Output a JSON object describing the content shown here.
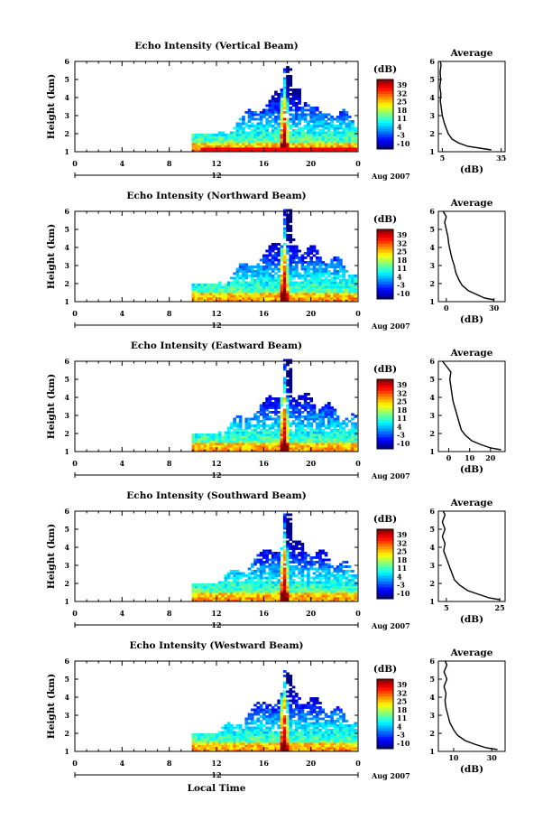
{
  "chart_data": [
    {
      "type": "heatmap",
      "title": "Echo Intensity (Vertical Beam)",
      "ylabel": "Height (km)",
      "ylim": [
        1,
        6
      ],
      "yticks": [
        "1",
        "2",
        "3",
        "4",
        "5",
        "6"
      ],
      "xlim": [
        0,
        24
      ],
      "xticks": [
        "0",
        "4",
        "8",
        "12",
        "16",
        "20",
        "0"
      ],
      "date_label": "12",
      "month_label": "Aug 2007",
      "colorbar": {
        "label": "(dB)",
        "ticks": [
          "39",
          "32",
          "25",
          "18",
          "11",
          "4",
          "-3",
          "-10"
        ]
      },
      "average": {
        "title": "Average",
        "xlabel": "(dB)",
        "xticks": [
          "5",
          "35"
        ],
        "xlim": [
          3,
          37
        ],
        "profile": [
          [
            30,
            1.1
          ],
          [
            24,
            1.2
          ],
          [
            18,
            1.3
          ],
          [
            13,
            1.5
          ],
          [
            10,
            1.7
          ],
          [
            8,
            2.0
          ],
          [
            7,
            2.3
          ],
          [
            6,
            2.6
          ],
          [
            5,
            3.0
          ],
          [
            4.5,
            3.4
          ],
          [
            4,
            3.8
          ],
          [
            4.3,
            4.2
          ],
          [
            3.8,
            4.6
          ],
          [
            4.2,
            5.0
          ],
          [
            3.9,
            5.4
          ],
          [
            4.4,
            5.8
          ],
          [
            4.0,
            6.0
          ]
        ]
      }
    },
    {
      "type": "heatmap",
      "title": "Echo Intensity (Northward Beam)",
      "ylabel": "Height (km)",
      "ylim": [
        1,
        6
      ],
      "yticks": [
        "1",
        "2",
        "3",
        "4",
        "5",
        "6"
      ],
      "xlim": [
        0,
        24
      ],
      "xticks": [
        "0",
        "4",
        "8",
        "12",
        "16",
        "20",
        "0"
      ],
      "date_label": "12",
      "month_label": "Aug 2007",
      "colorbar": {
        "label": "(dB)",
        "ticks": [
          "39",
          "32",
          "25",
          "18",
          "11",
          "4",
          "-3",
          "-10"
        ]
      },
      "average": {
        "title": "Average",
        "xlabel": "(dB)",
        "xticks": [
          "0",
          "30"
        ],
        "xlim": [
          -5,
          37
        ],
        "profile": [
          [
            30,
            1.1
          ],
          [
            24,
            1.2
          ],
          [
            19,
            1.4
          ],
          [
            14,
            1.6
          ],
          [
            10,
            1.9
          ],
          [
            8,
            2.2
          ],
          [
            6,
            2.6
          ],
          [
            5,
            3.0
          ],
          [
            3.5,
            3.4
          ],
          [
            2.5,
            3.8
          ],
          [
            1.5,
            4.2
          ],
          [
            1,
            4.6
          ],
          [
            0,
            5.0
          ],
          [
            -1,
            5.4
          ],
          [
            0,
            5.7
          ],
          [
            -2,
            6.0
          ]
        ]
      }
    },
    {
      "type": "heatmap",
      "title": "Echo Intensity (Eastward Beam)",
      "ylabel": "Height (km)",
      "ylim": [
        1,
        6
      ],
      "yticks": [
        "1",
        "2",
        "3",
        "4",
        "5",
        "6"
      ],
      "xlim": [
        0,
        24
      ],
      "xticks": [
        "0",
        "4",
        "8",
        "12",
        "16",
        "20",
        "0"
      ],
      "date_label": "12",
      "month_label": "Aug 2007",
      "colorbar": {
        "label": "(dB)",
        "ticks": [
          "39",
          "32",
          "25",
          "18",
          "11",
          "4",
          "-3",
          "-10"
        ]
      },
      "average": {
        "title": "Average",
        "xlabel": "(dB)",
        "xticks": [
          "0",
          "10",
          "20"
        ],
        "xlim": [
          -5,
          27
        ],
        "profile": [
          [
            25,
            1.1
          ],
          [
            20,
            1.2
          ],
          [
            15,
            1.4
          ],
          [
            11,
            1.6
          ],
          [
            8,
            1.9
          ],
          [
            6,
            2.2
          ],
          [
            5,
            2.6
          ],
          [
            4,
            3.0
          ],
          [
            3,
            3.4
          ],
          [
            2,
            3.8
          ],
          [
            1.5,
            4.2
          ],
          [
            1,
            4.6
          ],
          [
            0.5,
            5.0
          ],
          [
            1,
            5.4
          ],
          [
            -1,
            5.7
          ],
          [
            -3,
            6.0
          ]
        ]
      }
    },
    {
      "type": "heatmap",
      "title": "Echo Intensity (Southward Beam)",
      "ylabel": "Height (km)",
      "ylim": [
        1,
        6
      ],
      "yticks": [
        "1",
        "2",
        "3",
        "4",
        "5",
        "6"
      ],
      "xlim": [
        0,
        24
      ],
      "xticks": [
        "0",
        "4",
        "8",
        "12",
        "16",
        "20",
        "0"
      ],
      "date_label": "12",
      "month_label": "Aug 2007",
      "colorbar": {
        "label": "(dB)",
        "ticks": [
          "39",
          "32",
          "25",
          "18",
          "11",
          "4",
          "-3",
          "-10"
        ]
      },
      "average": {
        "title": "Average",
        "xlabel": "(dB)",
        "xticks": [
          "5",
          "25"
        ],
        "xlim": [
          2,
          27
        ],
        "profile": [
          [
            25,
            1.1
          ],
          [
            21,
            1.2
          ],
          [
            17,
            1.4
          ],
          [
            13,
            1.6
          ],
          [
            10,
            1.9
          ],
          [
            8,
            2.2
          ],
          [
            7,
            2.6
          ],
          [
            6,
            3.0
          ],
          [
            5,
            3.4
          ],
          [
            4,
            3.8
          ],
          [
            4.5,
            4.2
          ],
          [
            3.5,
            4.6
          ],
          [
            4.5,
            5.0
          ],
          [
            3.5,
            5.4
          ],
          [
            4.5,
            5.8
          ],
          [
            3.8,
            6.0
          ]
        ]
      }
    },
    {
      "type": "heatmap",
      "title": "Echo Intensity (Westward Beam)",
      "ylabel": "Height (km)",
      "ylim": [
        1,
        6
      ],
      "yticks": [
        "1",
        "2",
        "3",
        "4",
        "5",
        "6"
      ],
      "xlim": [
        0,
        24
      ],
      "xticks": [
        "0",
        "4",
        "8",
        "12",
        "16",
        "20",
        "0"
      ],
      "date_label": "12",
      "month_label": "Aug 2007",
      "xlabel": "Local Time",
      "colorbar": {
        "label": "(dB)",
        "ticks": [
          "39",
          "32",
          "25",
          "18",
          "11",
          "4",
          "-3",
          "-10"
        ]
      },
      "average": {
        "title": "Average",
        "xlabel": "(dB)",
        "xticks": [
          "10",
          "30"
        ],
        "xlim": [
          2,
          37
        ],
        "profile": [
          [
            33,
            1.1
          ],
          [
            27,
            1.2
          ],
          [
            21,
            1.4
          ],
          [
            16,
            1.6
          ],
          [
            12,
            1.9
          ],
          [
            10,
            2.2
          ],
          [
            8,
            2.6
          ],
          [
            7,
            3.0
          ],
          [
            6,
            3.4
          ],
          [
            5.5,
            3.8
          ],
          [
            6,
            4.2
          ],
          [
            5,
            4.6
          ],
          [
            6.5,
            5.0
          ],
          [
            5,
            5.4
          ],
          [
            6.5,
            5.8
          ],
          [
            5.5,
            6.0
          ]
        ]
      }
    }
  ]
}
